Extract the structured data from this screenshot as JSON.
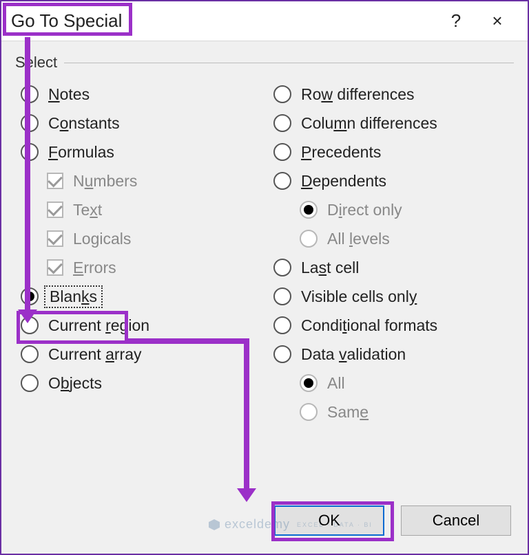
{
  "colors": {
    "highlight": "#9b30c8",
    "dialog_bg": "#f0f0f0",
    "titlebar_bg": "#ffffff",
    "text": "#222222",
    "disabled_text": "#888888",
    "btn_bg": "#e1e1e1",
    "btn_border": "#a6a6a6",
    "ok_border": "#0b6bd1"
  },
  "title": "Go To Special",
  "help_symbol": "?",
  "close_symbol": "×",
  "group_label": "Select",
  "left_options": [
    {
      "key": "notes",
      "label_pre": "",
      "u": "N",
      "label_post": "otes",
      "type": "radio",
      "selected": false,
      "disabled": false,
      "sub": false
    },
    {
      "key": "constants",
      "label_pre": "C",
      "u": "o",
      "label_post": "nstants",
      "type": "radio",
      "selected": false,
      "disabled": false,
      "sub": false
    },
    {
      "key": "formulas",
      "label_pre": "",
      "u": "F",
      "label_post": "ormulas",
      "type": "radio",
      "selected": false,
      "disabled": false,
      "sub": false
    },
    {
      "key": "numbers",
      "label_pre": "N",
      "u": "u",
      "label_post": "mbers",
      "type": "check",
      "checked": true,
      "disabled": true,
      "sub": true
    },
    {
      "key": "text",
      "label_pre": "Te",
      "u": "x",
      "label_post": "t",
      "type": "check",
      "checked": true,
      "disabled": true,
      "sub": true
    },
    {
      "key": "logicals",
      "label_pre": "Lo",
      "u": "g",
      "label_post": "icals",
      "type": "check",
      "checked": true,
      "disabled": true,
      "sub": true
    },
    {
      "key": "errors",
      "label_pre": "",
      "u": "E",
      "label_post": "rrors",
      "type": "check",
      "checked": true,
      "disabled": true,
      "sub": true
    },
    {
      "key": "blanks",
      "label_pre": "Blan",
      "u": "k",
      "label_post": "s",
      "type": "radio",
      "selected": true,
      "disabled": false,
      "sub": false,
      "focus": true
    },
    {
      "key": "current_region",
      "label_pre": "Current ",
      "u": "r",
      "label_post": "egion",
      "type": "radio",
      "selected": false,
      "disabled": false,
      "sub": false
    },
    {
      "key": "current_array",
      "label_pre": "Current ",
      "u": "a",
      "label_post": "rray",
      "type": "radio",
      "selected": false,
      "disabled": false,
      "sub": false
    },
    {
      "key": "objects",
      "label_pre": "O",
      "u": "b",
      "label_post": "jects",
      "type": "radio",
      "selected": false,
      "disabled": false,
      "sub": false
    }
  ],
  "right_options": [
    {
      "key": "row_diff",
      "label_pre": "Ro",
      "u": "w",
      "label_post": " differences",
      "type": "radio",
      "selected": false,
      "disabled": false,
      "sub": false
    },
    {
      "key": "col_diff",
      "label_pre": "Colu",
      "u": "m",
      "label_post": "n differences",
      "type": "radio",
      "selected": false,
      "disabled": false,
      "sub": false
    },
    {
      "key": "precedents",
      "label_pre": "",
      "u": "P",
      "label_post": "recedents",
      "type": "radio",
      "selected": false,
      "disabled": false,
      "sub": false
    },
    {
      "key": "dependents",
      "label_pre": "",
      "u": "D",
      "label_post": "ependents",
      "type": "radio",
      "selected": false,
      "disabled": false,
      "sub": false
    },
    {
      "key": "direct_only",
      "label_pre": "D",
      "u": "i",
      "label_post": "rect only",
      "type": "radio",
      "selected": true,
      "disabled": true,
      "sub": true
    },
    {
      "key": "all_levels",
      "label_pre": "All ",
      "u": "l",
      "label_post": "evels",
      "type": "radio",
      "selected": false,
      "disabled": true,
      "sub": true
    },
    {
      "key": "last_cell",
      "label_pre": "La",
      "u": "s",
      "label_post": "t cell",
      "type": "radio",
      "selected": false,
      "disabled": false,
      "sub": false
    },
    {
      "key": "visible",
      "label_pre": "Visible cells onl",
      "u": "y",
      "label_post": "",
      "type": "radio",
      "selected": false,
      "disabled": false,
      "sub": false
    },
    {
      "key": "cond_formats",
      "label_pre": "Condi",
      "u": "t",
      "label_post": "ional formats",
      "type": "radio",
      "selected": false,
      "disabled": false,
      "sub": false
    },
    {
      "key": "data_validation",
      "label_pre": "Data ",
      "u": "v",
      "label_post": "alidation",
      "type": "radio",
      "selected": false,
      "disabled": false,
      "sub": false
    },
    {
      "key": "all",
      "label_pre": "All",
      "u": "",
      "label_post": "",
      "type": "radio",
      "selected": true,
      "disabled": true,
      "sub": true
    },
    {
      "key": "same",
      "label_pre": "Sam",
      "u": "e",
      "label_post": "",
      "type": "radio",
      "selected": false,
      "disabled": true,
      "sub": true
    }
  ],
  "buttons": {
    "ok": "OK",
    "cancel": "Cancel"
  },
  "watermark": {
    "brand": "exceldemy",
    "tag": "EXCEL · DATA · BI"
  }
}
